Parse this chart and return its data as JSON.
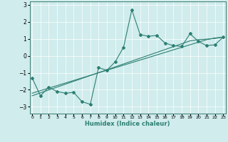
{
  "xlabel": "Humidex (Indice chaleur)",
  "x": [
    0,
    1,
    2,
    3,
    4,
    5,
    6,
    7,
    8,
    9,
    10,
    11,
    12,
    13,
    14,
    15,
    16,
    17,
    18,
    19,
    20,
    21,
    22,
    23
  ],
  "y_main": [
    -1.3,
    -2.35,
    -1.85,
    -2.1,
    -2.2,
    -2.15,
    -2.7,
    -2.85,
    -0.7,
    -0.85,
    -0.35,
    0.5,
    2.7,
    1.25,
    1.15,
    1.2,
    0.75,
    0.6,
    0.55,
    1.3,
    0.85,
    0.6,
    0.65,
    1.1
  ],
  "y_line1": [
    -2.2,
    -2.05,
    -1.9,
    -1.75,
    -1.6,
    -1.45,
    -1.3,
    -1.15,
    -1.0,
    -0.85,
    -0.7,
    -0.55,
    -0.4,
    -0.25,
    -0.1,
    0.05,
    0.2,
    0.35,
    0.5,
    0.65,
    0.8,
    0.95,
    1.05,
    1.1
  ],
  "y_line2": [
    -2.35,
    -2.18,
    -2.01,
    -1.84,
    -1.67,
    -1.5,
    -1.33,
    -1.16,
    -0.99,
    -0.82,
    -0.65,
    -0.48,
    -0.31,
    -0.14,
    0.03,
    0.2,
    0.37,
    0.54,
    0.71,
    0.88,
    0.95,
    0.98,
    1.02,
    1.1
  ],
  "color": "#2D7F72",
  "bg_color": "#D0ECEC",
  "grid_color": "#FFFFFF",
  "ylim": [
    -3.4,
    3.2
  ],
  "xlim": [
    -0.3,
    23.3
  ],
  "yticks": [
    -3,
    -2,
    -1,
    0,
    1,
    2,
    3
  ],
  "xticks": [
    0,
    1,
    2,
    3,
    4,
    5,
    6,
    7,
    8,
    9,
    10,
    11,
    12,
    13,
    14,
    15,
    16,
    17,
    18,
    19,
    20,
    21,
    22,
    23
  ]
}
